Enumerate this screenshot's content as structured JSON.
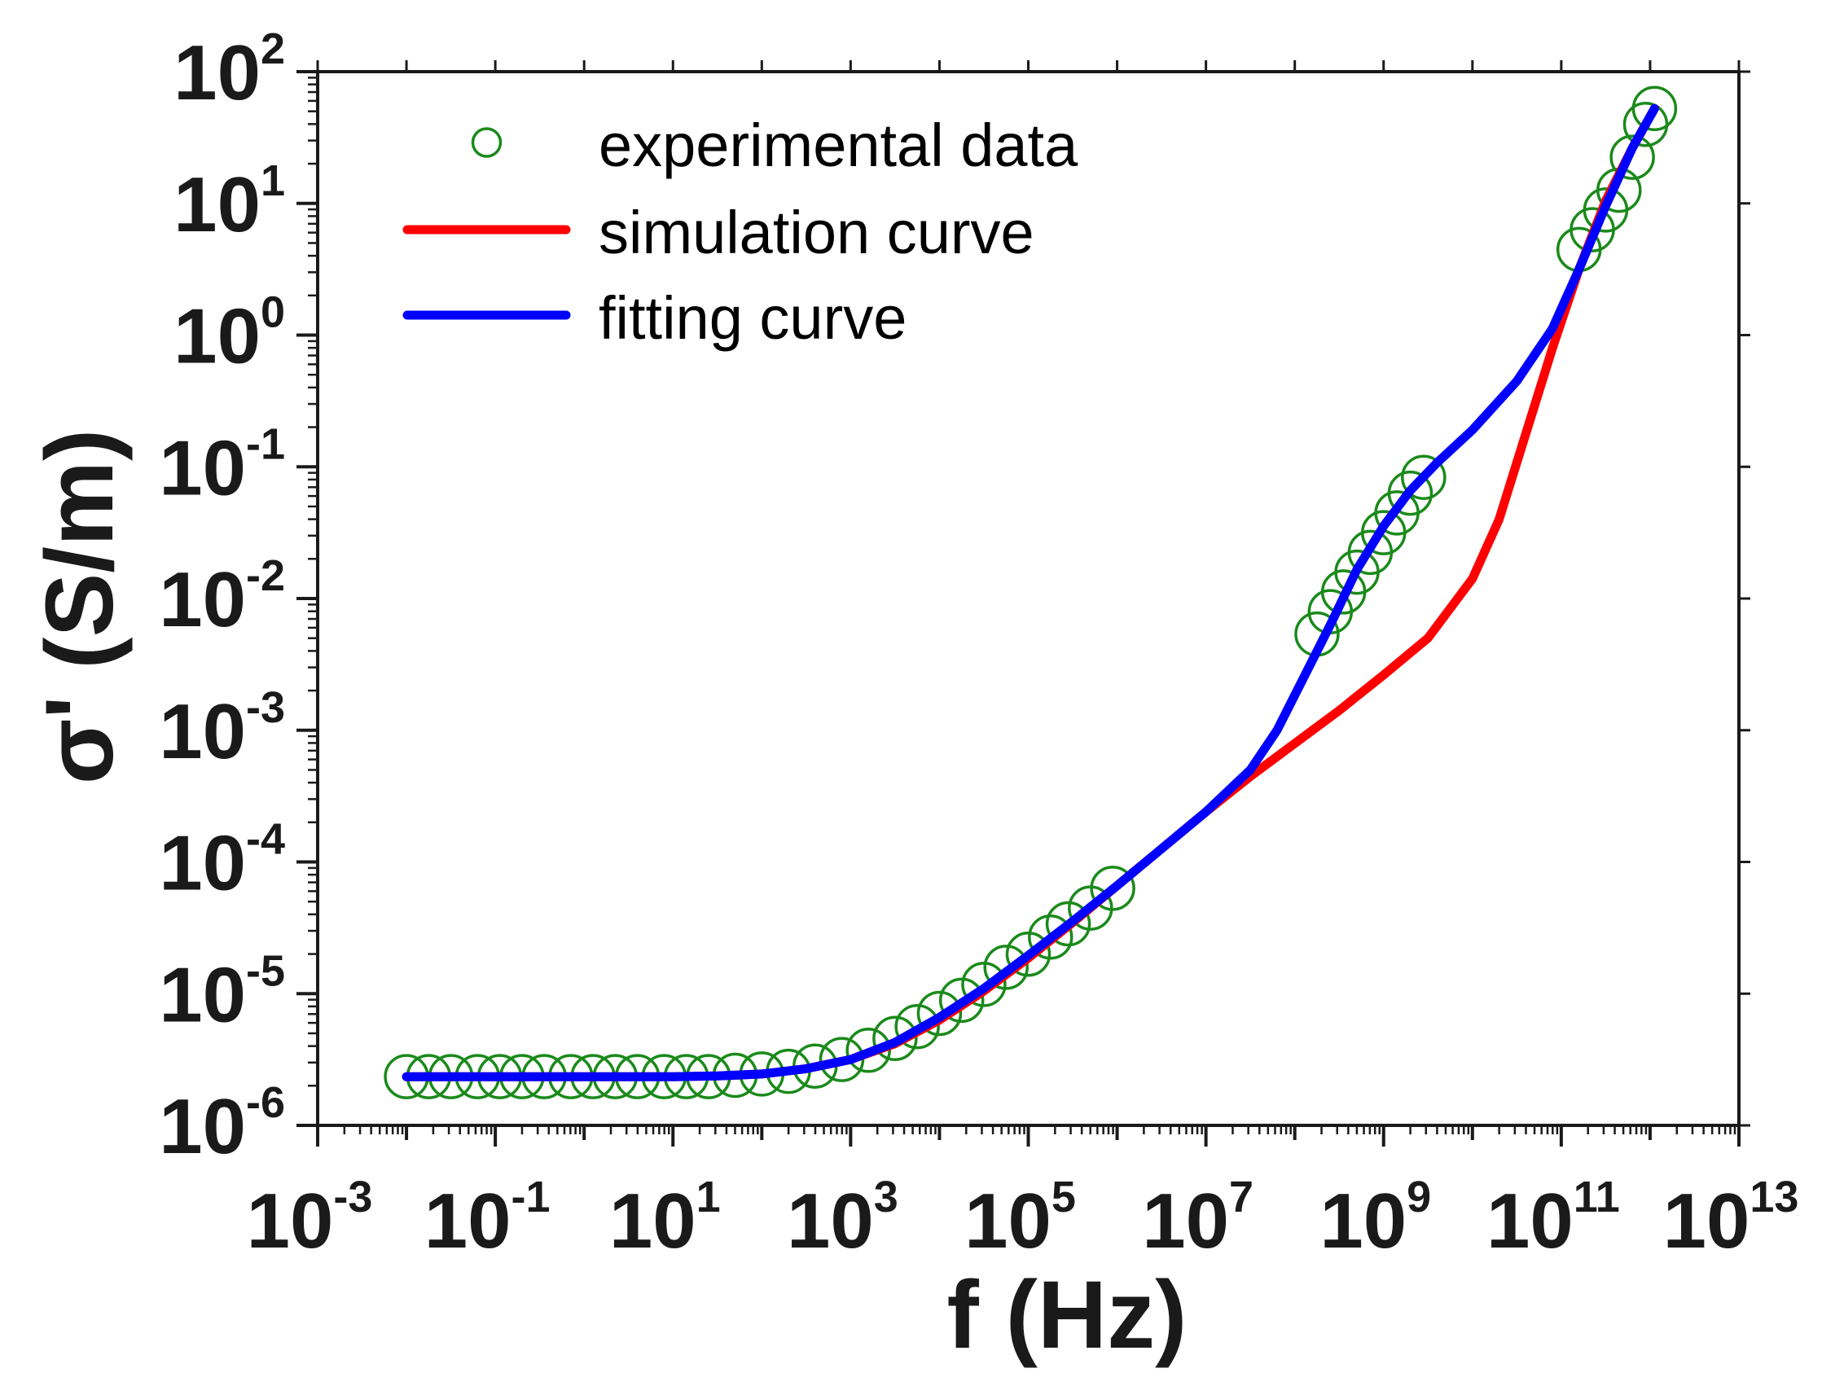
{
  "chart_data": {
    "type": "scatter",
    "x_scale": "log",
    "y_scale": "log",
    "xlabel": "f (Hz)",
    "ylabel": "σ' (S/m)",
    "xlim_log10": [
      -3,
      13
    ],
    "ylim_log10": [
      -6,
      2
    ],
    "x_ticks": [
      {
        "base": "10",
        "exp": "-3",
        "value": -3
      },
      {
        "base": "10",
        "exp": "-1",
        "value": -1
      },
      {
        "base": "10",
        "exp": "1",
        "value": 1
      },
      {
        "base": "10",
        "exp": "3",
        "value": 3
      },
      {
        "base": "10",
        "exp": "5",
        "value": 5
      },
      {
        "base": "10",
        "exp": "7",
        "value": 7
      },
      {
        "base": "10",
        "exp": "9",
        "value": 9
      },
      {
        "base": "10",
        "exp": "11",
        "value": 11
      },
      {
        "base": "10",
        "exp": "13",
        "value": 13
      }
    ],
    "y_ticks": [
      {
        "base": "10",
        "exp": "2",
        "value": 2
      },
      {
        "base": "10",
        "exp": "1",
        "value": 1
      },
      {
        "base": "10",
        "exp": "0",
        "value": 0
      },
      {
        "base": "10",
        "exp": "-1",
        "value": -1
      },
      {
        "base": "10",
        "exp": "-2",
        "value": -2
      },
      {
        "base": "10",
        "exp": "-3",
        "value": -3
      },
      {
        "base": "10",
        "exp": "-4",
        "value": -4
      },
      {
        "base": "10",
        "exp": "-5",
        "value": -5
      },
      {
        "base": "10",
        "exp": "-6",
        "value": -6
      }
    ],
    "legend": {
      "position": "top-left",
      "entries": [
        {
          "label": "experimental data",
          "marker": "circle",
          "color": "#1a8a1a"
        },
        {
          "label": "simulation curve",
          "marker": "line",
          "color": "#ff0000"
        },
        {
          "label": "fitting curve",
          "marker": "line",
          "color": "#0000ff"
        }
      ]
    },
    "series": [
      {
        "name": "experimental data",
        "kind": "scatter",
        "color": "#1a8a1a",
        "log10_points": [
          [
            -2.0,
            -5.63
          ],
          [
            -1.75,
            -5.63
          ],
          [
            -1.5,
            -5.63
          ],
          [
            -1.2,
            -5.63
          ],
          [
            -0.95,
            -5.63
          ],
          [
            -0.7,
            -5.63
          ],
          [
            -0.45,
            -5.63
          ],
          [
            -0.15,
            -5.63
          ],
          [
            0.1,
            -5.63
          ],
          [
            0.35,
            -5.63
          ],
          [
            0.6,
            -5.63
          ],
          [
            0.9,
            -5.63
          ],
          [
            1.15,
            -5.63
          ],
          [
            1.4,
            -5.63
          ],
          [
            1.7,
            -5.62
          ],
          [
            2.0,
            -5.61
          ],
          [
            2.3,
            -5.59
          ],
          [
            2.6,
            -5.55
          ],
          [
            2.9,
            -5.5
          ],
          [
            3.2,
            -5.43
          ],
          [
            3.5,
            -5.34
          ],
          [
            3.75,
            -5.25
          ],
          [
            4.0,
            -5.15
          ],
          [
            4.25,
            -5.05
          ],
          [
            4.5,
            -4.93
          ],
          [
            4.75,
            -4.8
          ],
          [
            5.0,
            -4.7
          ],
          [
            5.25,
            -4.57
          ],
          [
            5.45,
            -4.47
          ],
          [
            5.7,
            -4.35
          ],
          [
            5.95,
            -4.2
          ],
          [
            8.25,
            -2.27
          ],
          [
            8.4,
            -2.1
          ],
          [
            8.55,
            -1.95
          ],
          [
            8.7,
            -1.8
          ],
          [
            8.85,
            -1.65
          ],
          [
            9.0,
            -1.5
          ],
          [
            9.15,
            -1.35
          ],
          [
            9.3,
            -1.2
          ],
          [
            9.45,
            -1.08
          ],
          [
            11.2,
            0.65
          ],
          [
            11.35,
            0.8
          ],
          [
            11.5,
            0.95
          ],
          [
            11.65,
            1.1
          ],
          [
            11.8,
            1.35
          ],
          [
            11.95,
            1.6
          ],
          [
            12.05,
            1.72
          ]
        ]
      },
      {
        "name": "simulation curve",
        "kind": "line",
        "color": "#ff0000",
        "log10_points": [
          [
            -2.0,
            -5.63
          ],
          [
            0.0,
            -5.63
          ],
          [
            1.0,
            -5.63
          ],
          [
            1.5,
            -5.625
          ],
          [
            2.0,
            -5.61
          ],
          [
            2.5,
            -5.57
          ],
          [
            3.0,
            -5.5
          ],
          [
            3.5,
            -5.38
          ],
          [
            4.0,
            -5.2
          ],
          [
            4.5,
            -4.98
          ],
          [
            5.0,
            -4.73
          ],
          [
            5.5,
            -4.46
          ],
          [
            6.0,
            -4.18
          ],
          [
            6.5,
            -3.9
          ],
          [
            7.0,
            -3.62
          ],
          [
            7.5,
            -3.35
          ],
          [
            8.0,
            -3.1
          ],
          [
            8.5,
            -2.85
          ],
          [
            9.0,
            -2.58
          ],
          [
            9.5,
            -2.3
          ],
          [
            10.0,
            -1.85
          ],
          [
            10.3,
            -1.4
          ],
          [
            10.6,
            -0.75
          ],
          [
            10.9,
            -0.1
          ],
          [
            11.2,
            0.5
          ],
          [
            11.5,
            1.02
          ],
          [
            11.8,
            1.42
          ],
          [
            12.05,
            1.72
          ]
        ]
      },
      {
        "name": "fitting curve",
        "kind": "line",
        "color": "#0000ff",
        "log10_points": [
          [
            -2.0,
            -5.63
          ],
          [
            0.0,
            -5.63
          ],
          [
            1.0,
            -5.63
          ],
          [
            1.5,
            -5.625
          ],
          [
            2.0,
            -5.61
          ],
          [
            2.5,
            -5.57
          ],
          [
            3.0,
            -5.5
          ],
          [
            3.5,
            -5.37
          ],
          [
            4.0,
            -5.18
          ],
          [
            4.5,
            -4.96
          ],
          [
            5.0,
            -4.71
          ],
          [
            5.5,
            -4.45
          ],
          [
            6.0,
            -4.18
          ],
          [
            6.5,
            -3.9
          ],
          [
            7.0,
            -3.62
          ],
          [
            7.5,
            -3.3
          ],
          [
            7.8,
            -3.0
          ],
          [
            8.1,
            -2.6
          ],
          [
            8.4,
            -2.2
          ],
          [
            8.7,
            -1.78
          ],
          [
            9.0,
            -1.45
          ],
          [
            9.3,
            -1.18
          ],
          [
            9.6,
            -0.97
          ],
          [
            10.0,
            -0.72
          ],
          [
            10.5,
            -0.35
          ],
          [
            10.9,
            0.05
          ],
          [
            11.2,
            0.5
          ],
          [
            11.5,
            0.98
          ],
          [
            11.8,
            1.42
          ],
          [
            12.05,
            1.72
          ]
        ]
      }
    ]
  }
}
